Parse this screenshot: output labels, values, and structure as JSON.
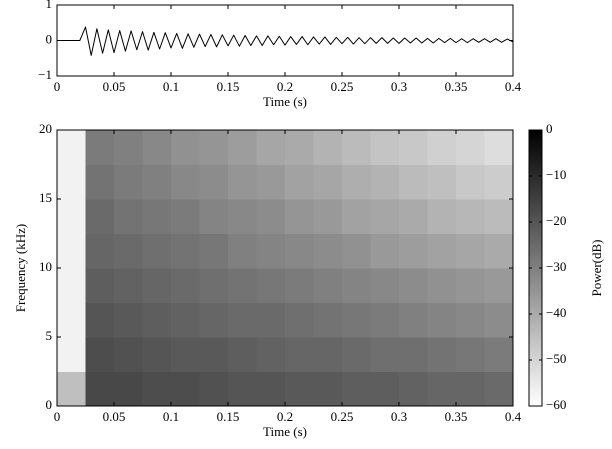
{
  "chart_data": [
    {
      "type": "line",
      "xlabel": "Time (s)",
      "color": "#000000",
      "x": [
        0,
        0.005,
        0.01,
        0.015,
        0.02,
        0.025,
        0.03,
        0.035,
        0.04,
        0.045,
        0.05,
        0.055,
        0.06,
        0.065,
        0.07,
        0.075,
        0.08,
        0.085,
        0.09,
        0.095,
        0.1,
        0.105,
        0.11,
        0.115,
        0.12,
        0.125,
        0.13,
        0.135,
        0.14,
        0.145,
        0.15,
        0.155,
        0.16,
        0.165,
        0.17,
        0.175,
        0.18,
        0.185,
        0.19,
        0.195,
        0.2,
        0.205,
        0.21,
        0.215,
        0.22,
        0.225,
        0.23,
        0.235,
        0.24,
        0.245,
        0.25,
        0.255,
        0.26,
        0.265,
        0.27,
        0.275,
        0.28,
        0.285,
        0.29,
        0.295,
        0.3,
        0.305,
        0.31,
        0.315,
        0.32,
        0.325,
        0.33,
        0.335,
        0.34,
        0.345,
        0.35,
        0.355,
        0.36,
        0.365,
        0.37,
        0.375,
        0.38,
        0.385,
        0.39,
        0.395,
        0.4
      ],
      "values": [
        0,
        0,
        0,
        0,
        0,
        0.38,
        -0.42,
        0.33,
        -0.36,
        0.3,
        -0.34,
        0.28,
        -0.3,
        0.27,
        -0.26,
        0.25,
        -0.27,
        0.23,
        -0.24,
        0.22,
        -0.21,
        0.2,
        -0.22,
        0.19,
        -0.19,
        0.18,
        -0.17,
        0.17,
        -0.18,
        0.16,
        -0.15,
        0.15,
        -0.16,
        0.14,
        -0.14,
        0.13,
        -0.14,
        0.13,
        -0.12,
        0.12,
        -0.13,
        0.11,
        -0.11,
        0.11,
        -0.12,
        0.1,
        -0.1,
        0.1,
        -0.11,
        0.09,
        -0.09,
        0.09,
        -0.1,
        0.08,
        -0.09,
        0.08,
        -0.08,
        0.08,
        -0.08,
        0.07,
        -0.08,
        0.07,
        -0.07,
        0.07,
        -0.07,
        0.06,
        -0.07,
        0.06,
        -0.06,
        0.06,
        -0.06,
        0.05,
        -0.06,
        0.05,
        -0.05,
        0.05,
        -0.05,
        0.05,
        -0.05,
        0.04,
        -0.04
      ],
      "xlim": [
        0,
        0.4
      ],
      "xticks": [
        0,
        0.05,
        0.1,
        0.15,
        0.2,
        0.25,
        0.3,
        0.35,
        0.4
      ],
      "ylim": [
        -1,
        1
      ],
      "yticks": [
        {
          "value": -1,
          "label": "−1"
        },
        0,
        1
      ]
    },
    {
      "type": "heatmap",
      "xlabel": "Time (s)",
      "ylabel": "Frequency (kHz)",
      "xbins": [
        0,
        0.025,
        0.05,
        0.075,
        0.1,
        0.125,
        0.15,
        0.175,
        0.2,
        0.225,
        0.25,
        0.275,
        0.3,
        0.325,
        0.35,
        0.375,
        0.4
      ],
      "ybins": [
        0,
        2.5,
        5,
        7.5,
        10,
        12.5,
        15,
        17.5,
        20
      ],
      "values": [
        [
          -45,
          -17,
          -17,
          -18,
          -18,
          -19,
          -20,
          -20,
          -21,
          -21,
          -22,
          -22,
          -23,
          -24,
          -24,
          -25
        ],
        [
          -57,
          -18,
          -19,
          -20,
          -21,
          -21,
          -22,
          -23,
          -24,
          -24,
          -25,
          -26,
          -26,
          -27,
          -28,
          -29
        ],
        [
          -57,
          -20,
          -21,
          -22,
          -23,
          -24,
          -25,
          -25,
          -26,
          -27,
          -28,
          -29,
          -30,
          -31,
          -32,
          -33
        ],
        [
          -57,
          -22,
          -23,
          -24,
          -25,
          -26,
          -27,
          -28,
          -29,
          -30,
          -31,
          -32,
          -33,
          -34,
          -35,
          -36
        ],
        [
          -57,
          -24,
          -25,
          -26,
          -27,
          -28,
          -30,
          -31,
          -32,
          -33,
          -34,
          -36,
          -37,
          -38,
          -39,
          -40
        ],
        [
          -57,
          -25,
          -27,
          -28,
          -29,
          -31,
          -32,
          -33,
          -35,
          -36,
          -38,
          -39,
          -40,
          -42,
          -43,
          -44
        ],
        [
          -57,
          -27,
          -29,
          -30,
          -32,
          -33,
          -35,
          -36,
          -38,
          -39,
          -41,
          -42,
          -44,
          -45,
          -47,
          -48
        ],
        [
          -57,
          -29,
          -30,
          -32,
          -34,
          -35,
          -37,
          -39,
          -40,
          -42,
          -44,
          -46,
          -47,
          -49,
          -50,
          -52
        ]
      ],
      "xlim": [
        0,
        0.4
      ],
      "xticks": [
        0,
        0.05,
        0.1,
        0.15,
        0.2,
        0.25,
        0.3,
        0.35,
        0.4
      ],
      "ylim": [
        0,
        20
      ],
      "yticks": [
        0,
        5,
        10,
        15,
        20
      ],
      "colormap": [
        "#ffffff",
        "#000000"
      ],
      "colorbar": {
        "label": "Power(dB)",
        "lim": [
          -60,
          0
        ],
        "ticks": [
          {
            "value": -60,
            "label": "−60"
          },
          {
            "value": -50,
            "label": "−50"
          },
          {
            "value": -40,
            "label": "−40"
          },
          {
            "value": -30,
            "label": "−30"
          },
          {
            "value": -20,
            "label": "−20"
          },
          {
            "value": -10,
            "label": "−10"
          },
          0
        ]
      }
    }
  ]
}
